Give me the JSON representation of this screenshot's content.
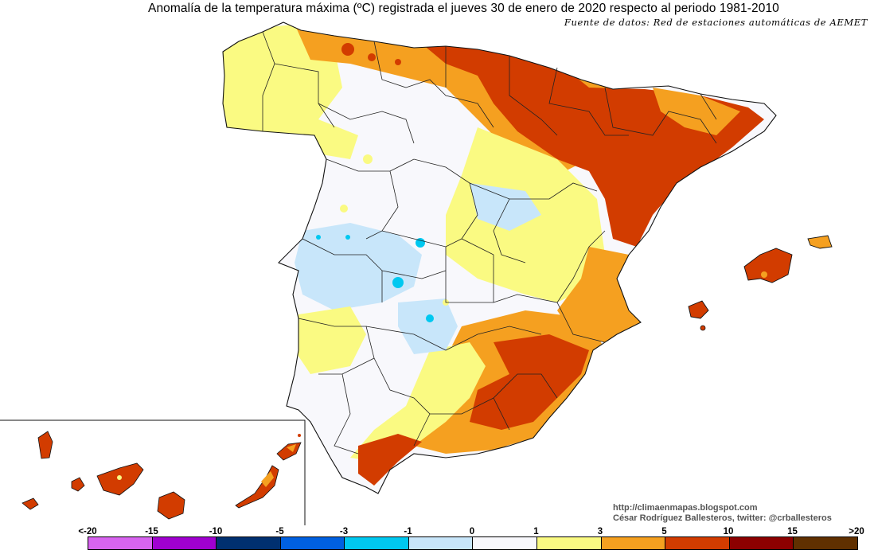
{
  "map": {
    "title": "Anomalía de la temperatura máxima (ºC) registrada el jueves 30 de enero de 2020 respecto al periodo 1981-2010",
    "source": "Fuente de datos: Red de estaciones automáticas de AEMET",
    "credit_url": "http://climaenmapas.blogspot.com",
    "credit_author": "César Rodríguez Ballesteros, twitter: @crballesteros",
    "inset": "Canary Islands"
  },
  "legend": {
    "ticks": [
      "<-20",
      "-15",
      "-10",
      "-5",
      "-3",
      "-1",
      "0",
      "1",
      "3",
      "5",
      "10",
      "15",
      ">20"
    ],
    "colors": [
      "#d864f0",
      "#a000d0",
      "#003070",
      "#0060e0",
      "#00c8f0",
      "#c8e6fa",
      "#f8f8fc",
      "#fafa82",
      "#f5a020",
      "#d23c00",
      "#8c0000",
      "#603000"
    ]
  },
  "anomaly_colors": {
    "below_1_to_minus3": "#00c8f0",
    "minus1_to_0": "#c8e6fa",
    "0_to_1": "#f8f8fc",
    "1_to_3": "#fafa82",
    "3_to_5": "#f5a020",
    "5_to_10": "#d23c00"
  }
}
